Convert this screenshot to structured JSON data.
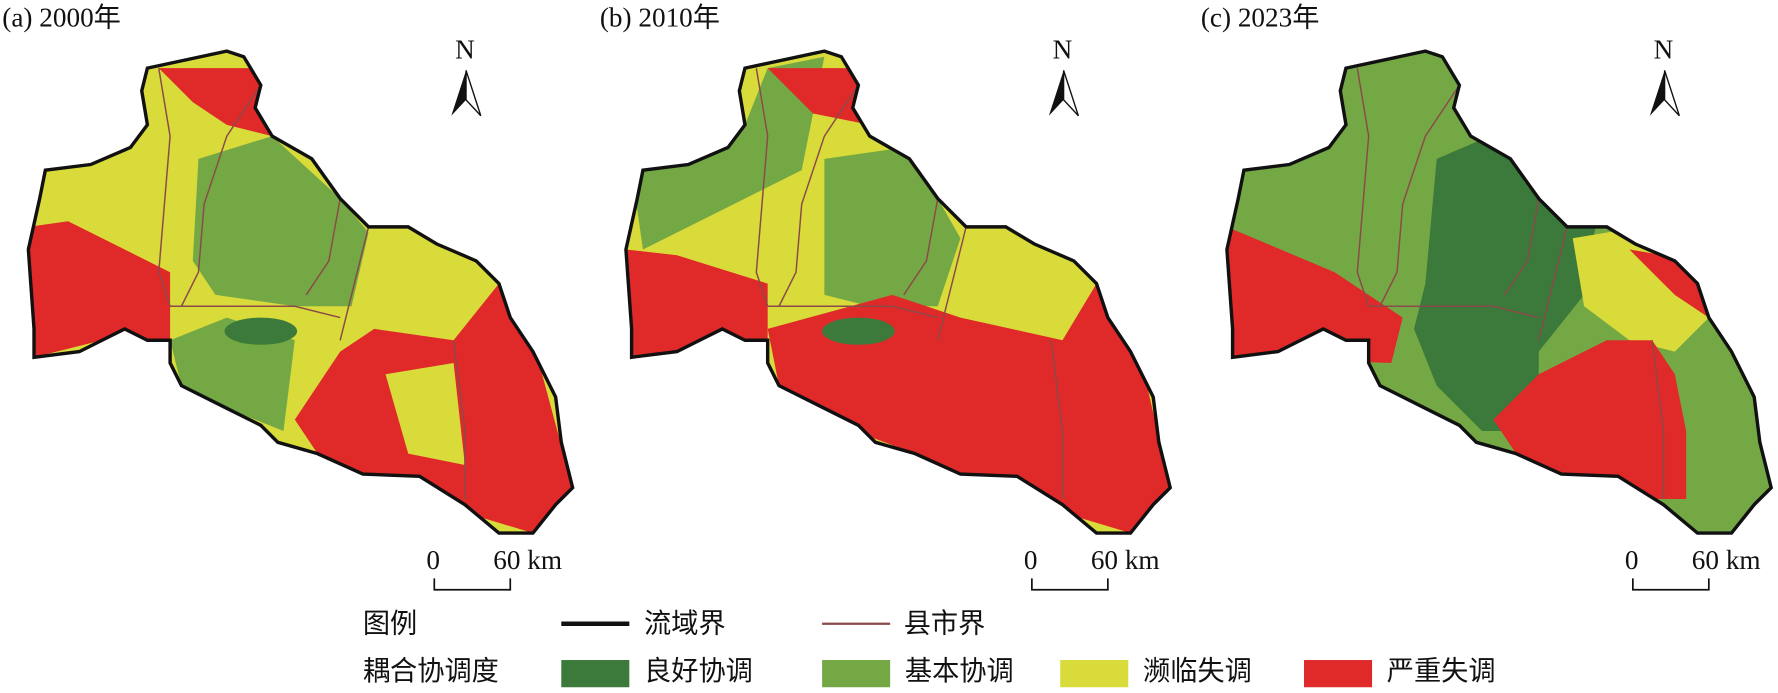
{
  "panels": [
    {
      "title": "(a) 2000年",
      "north": "N",
      "scale_start": "0",
      "scale_end": "60 km"
    },
    {
      "title": "(b) 2010年",
      "north": "N",
      "scale_start": "0",
      "scale_end": "60 km"
    },
    {
      "title": "(c) 2023年",
      "north": "N",
      "scale_start": "0",
      "scale_end": "60 km"
    }
  ],
  "legend": {
    "title": "图例",
    "boundaries": [
      {
        "label": "流域界",
        "color": "#111111"
      },
      {
        "label": "县市界",
        "color": "#8b4a4a"
      }
    ],
    "degree_title": "耦合协调度",
    "classes": [
      {
        "label": "良好协调",
        "color": "#3b7a3a"
      },
      {
        "label": "基本协调",
        "color": "#74a845"
      },
      {
        "label": "濒临失调",
        "color": "#d8db3a"
      },
      {
        "label": "严重失调",
        "color": "#df2a29"
      }
    ]
  }
}
